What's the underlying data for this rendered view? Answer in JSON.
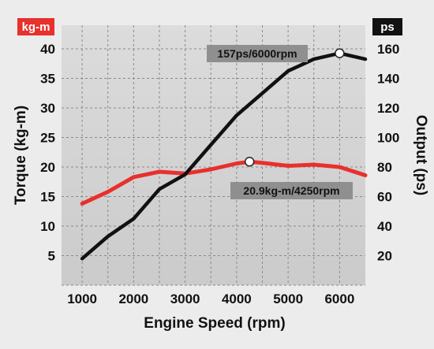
{
  "chart_data": {
    "type": "line",
    "xlabel": "Engine Speed (rpm)",
    "ylabel_left": "Torque (kg-m)",
    "ylabel_right": "Output (ps)",
    "unit_left": "kg-m",
    "unit_right": "ps",
    "xlim": [
      600,
      6500
    ],
    "ylim_left": [
      0,
      44
    ],
    "ylim_right": [
      0,
      176
    ],
    "x_ticks": [
      1000,
      2000,
      3000,
      4000,
      5000,
      6000
    ],
    "y_ticks_left": [
      5,
      10,
      15,
      20,
      25,
      30,
      35,
      40
    ],
    "y_ticks_right": [
      20,
      40,
      60,
      80,
      100,
      120,
      140,
      160
    ],
    "grid": true,
    "colors": {
      "torque": "#e8302c",
      "output": "#111111",
      "unit_left_bg": "#e8302c",
      "unit_right_bg": "#111111",
      "plot_bg": "#d4d4d4",
      "annotation_bg": "#8f8f8f"
    },
    "series": [
      {
        "key": "torque",
        "axis": "left",
        "x": [
          1000,
          1500,
          2000,
          2500,
          3000,
          3500,
          4000,
          4250,
          4500,
          5000,
          5500,
          6000,
          6500
        ],
        "values": [
          13.8,
          15.8,
          18.3,
          19.2,
          18.9,
          19.6,
          20.6,
          20.9,
          20.7,
          20.2,
          20.4,
          20.0,
          18.6
        ]
      },
      {
        "key": "output",
        "axis": "right",
        "x": [
          1000,
          1500,
          2000,
          2500,
          3000,
          3500,
          4000,
          4500,
          5000,
          5500,
          6000,
          6500
        ],
        "values": [
          18,
          33,
          45,
          65,
          75,
          95,
          115,
          130,
          145,
          153,
          157,
          153
        ]
      }
    ],
    "annotations": [
      {
        "text": "157ps/6000rpm",
        "series": "output",
        "x": 6000,
        "y": 157
      },
      {
        "text": "20.9kg-m/4250rpm",
        "series": "torque",
        "x": 4250,
        "y": 20.9
      }
    ]
  }
}
